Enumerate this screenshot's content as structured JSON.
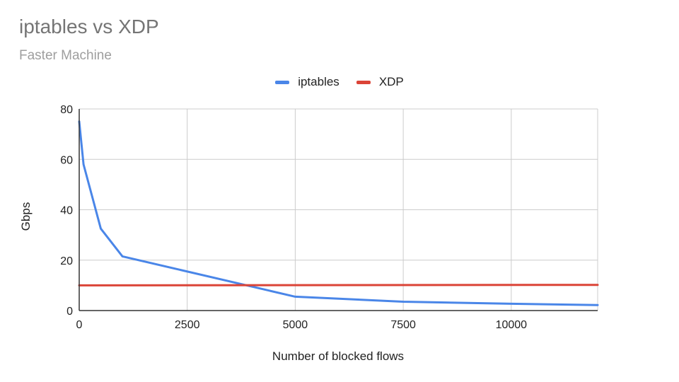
{
  "chart_data": {
    "type": "line",
    "title": "iptables vs XDP",
    "subtitle": "Faster Machine",
    "xlabel": "Number of blocked flows",
    "ylabel": "Gbps",
    "xlim": [
      0,
      12000
    ],
    "ylim": [
      0,
      80
    ],
    "xticks": [
      "0",
      "2500",
      "5000",
      "7500",
      "10000"
    ],
    "yticks": [
      "0",
      "20",
      "40",
      "60",
      "80"
    ],
    "legend_position": "top",
    "grid": true,
    "series": [
      {
        "name": "iptables",
        "color": "#4a86e8",
        "points": [
          [
            0,
            75
          ],
          [
            100,
            58
          ],
          [
            500,
            32.5
          ],
          [
            1000,
            21.5
          ],
          [
            5000,
            5.5
          ],
          [
            7500,
            3.5
          ],
          [
            10000,
            2.7
          ],
          [
            12000,
            2.2
          ]
        ]
      },
      {
        "name": "XDP",
        "color": "#db4437",
        "points": [
          [
            0,
            10
          ],
          [
            12000,
            10.2
          ]
        ]
      }
    ]
  }
}
